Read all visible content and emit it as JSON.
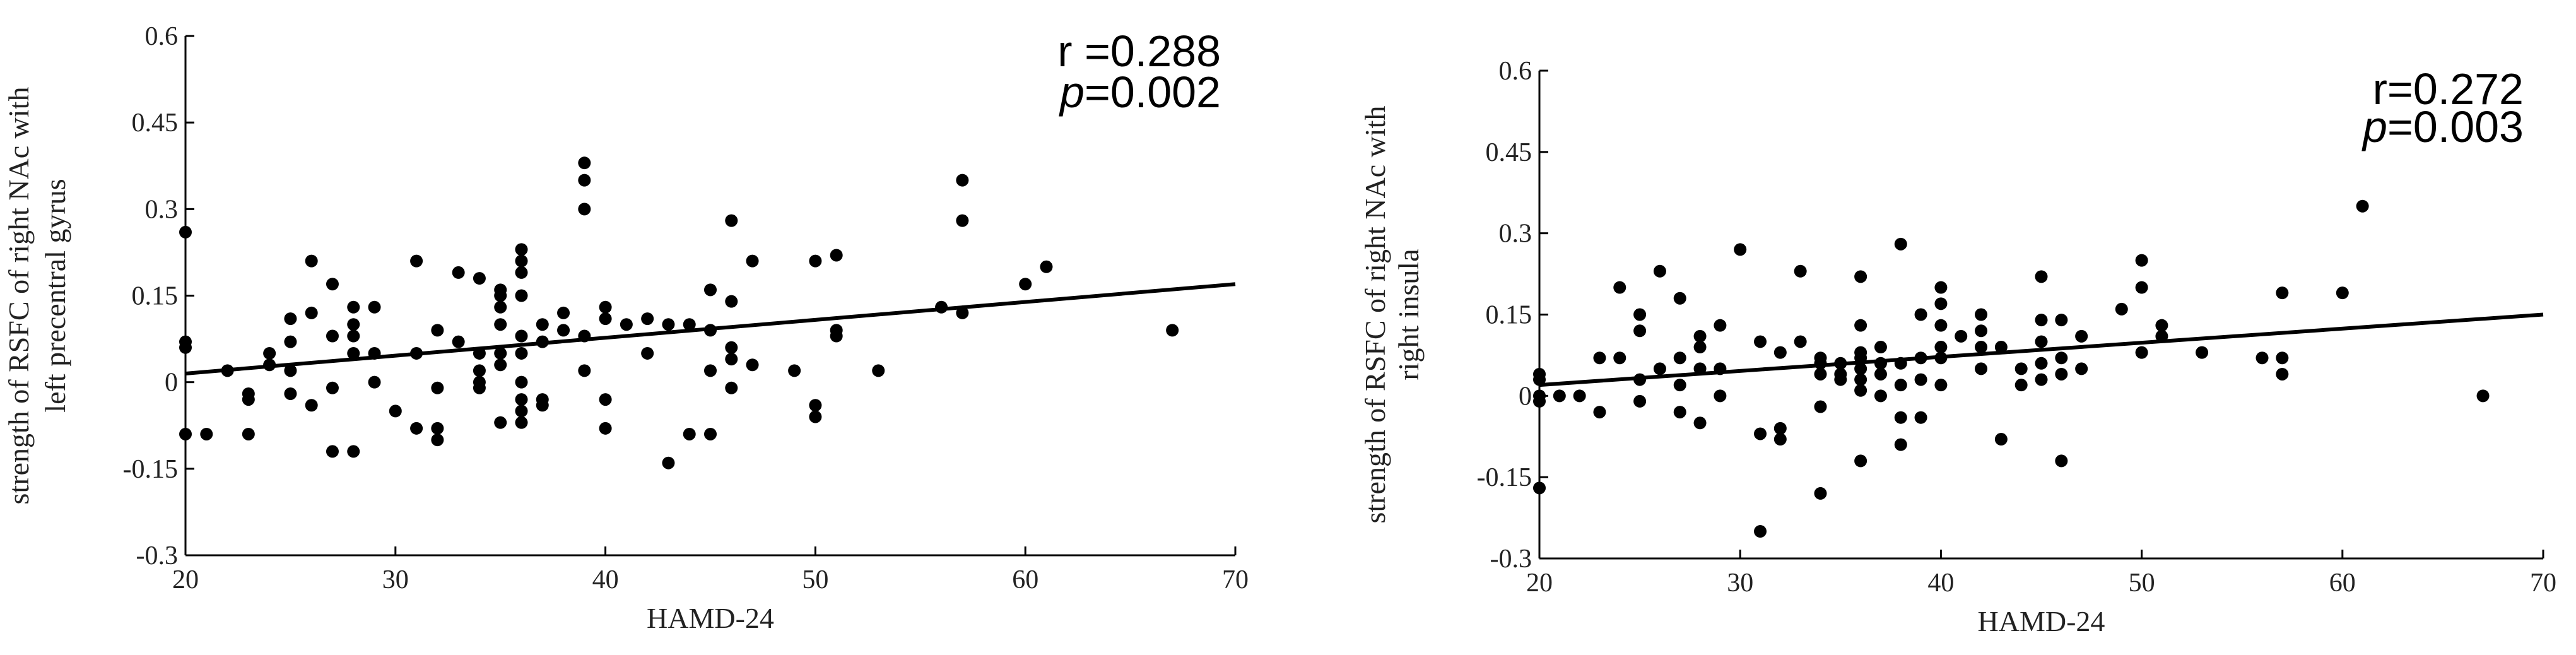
{
  "chart_data": [
    {
      "type": "scatter",
      "x_label": "HAMD-24",
      "y_label": [
        "strength of RSFC of right NAc with",
        "left precentral gyrus"
      ],
      "annotations": {
        "r": "r =0.288",
        "p_symbol": "p",
        "p_value": "=0.002"
      },
      "xlim": [
        20,
        70
      ],
      "xticks": [
        20,
        30,
        40,
        50,
        60,
        70
      ],
      "ylim": [
        -0.3,
        0.6
      ],
      "yticks": [
        -0.3,
        -0.15,
        0,
        0.15,
        0.3,
        0.45,
        0.6
      ],
      "color": "#000000",
      "x": [
        20,
        20,
        20,
        20,
        21,
        22,
        23,
        23,
        23,
        24,
        24,
        25,
        25,
        25,
        25,
        26,
        26,
        26,
        27,
        27,
        27,
        27,
        28,
        28,
        28,
        28,
        28,
        29,
        29,
        29,
        30,
        31,
        31,
        31,
        32,
        32,
        32,
        32,
        33,
        33,
        34,
        34,
        34,
        34,
        34,
        35,
        35,
        35,
        35,
        35,
        35,
        35,
        36,
        36,
        36,
        36,
        36,
        36,
        36,
        36,
        36,
        36,
        37,
        37,
        37,
        37,
        38,
        38,
        39,
        39,
        39,
        39,
        39,
        40,
        40,
        40,
        40,
        41,
        42,
        42,
        43,
        43,
        44,
        44,
        45,
        45,
        45,
        45,
        46,
        46,
        46,
        46,
        46,
        47,
        47,
        49,
        50,
        50,
        50,
        51,
        51,
        51,
        53,
        56,
        57,
        57,
        57,
        60,
        61,
        67
      ],
      "values": [
        0.26,
        0.07,
        0.06,
        -0.09,
        -0.09,
        0.02,
        -0.03,
        -0.02,
        -0.09,
        0.05,
        0.03,
        0.11,
        0.07,
        0.02,
        -0.02,
        0.21,
        0.12,
        -0.04,
        0.17,
        0.08,
        -0.01,
        -0.12,
        0.13,
        0.1,
        0.08,
        0.05,
        -0.12,
        0.13,
        0.05,
        0.0,
        -0.05,
        0.21,
        0.05,
        -0.08,
        0.09,
        -0.01,
        -0.08,
        -0.1,
        0.19,
        0.07,
        0.18,
        0.05,
        0.02,
        -0.01,
        0.0,
        0.16,
        0.15,
        0.13,
        0.1,
        0.05,
        0.03,
        -0.07,
        0.23,
        0.21,
        0.19,
        0.15,
        0.08,
        0.05,
        0.0,
        -0.03,
        -0.05,
        -0.07,
        0.1,
        0.07,
        -0.03,
        -0.04,
        0.12,
        0.09,
        0.38,
        0.35,
        0.3,
        0.08,
        0.02,
        0.13,
        0.11,
        -0.03,
        -0.08,
        0.1,
        0.11,
        0.05,
        0.1,
        -0.14,
        0.1,
        -0.09,
        0.16,
        0.09,
        0.02,
        -0.09,
        0.28,
        0.14,
        0.06,
        0.04,
        -0.01,
        0.21,
        0.03,
        0.02,
        0.21,
        -0.04,
        -0.06,
        0.22,
        0.09,
        0.08,
        0.02,
        0.13,
        0.35,
        0.28,
        0.12,
        0.17,
        0.2,
        0.09
      ],
      "fit_line": {
        "x": [
          20,
          70
        ],
        "values": [
          0.015,
          0.17
        ]
      }
    },
    {
      "type": "scatter",
      "x_label": "HAMD-24",
      "y_label": [
        "strength of RSFC of right NAc with",
        "right insula"
      ],
      "annotations": {
        "r": "r=0.272",
        "p_symbol": "p",
        "p_value": "=0.003"
      },
      "xlim": [
        20,
        70
      ],
      "xticks": [
        20,
        30,
        40,
        50,
        60,
        70
      ],
      "ylim": [
        -0.3,
        0.6
      ],
      "yticks": [
        -0.3,
        -0.15,
        0,
        0.15,
        0.3,
        0.45,
        0.6
      ],
      "color": "#000000",
      "x": [
        20,
        20,
        20,
        20,
        20,
        21,
        22,
        23,
        23,
        24,
        24,
        25,
        25,
        25,
        25,
        26,
        26,
        27,
        27,
        27,
        27,
        28,
        28,
        28,
        28,
        29,
        29,
        29,
        30,
        31,
        31,
        31,
        32,
        32,
        32,
        33,
        33,
        34,
        34,
        34,
        34,
        34,
        35,
        35,
        35,
        36,
        36,
        36,
        36,
        36,
        36,
        36,
        36,
        37,
        37,
        37,
        37,
        38,
        38,
        38,
        38,
        38,
        39,
        39,
        39,
        39,
        40,
        40,
        40,
        40,
        40,
        40,
        41,
        42,
        42,
        42,
        42,
        43,
        43,
        44,
        44,
        45,
        45,
        45,
        45,
        45,
        46,
        46,
        46,
        46,
        47,
        47,
        49,
        50,
        50,
        50,
        51,
        51,
        53,
        56,
        57,
        57,
        57,
        60,
        61,
        67
      ],
      "values": [
        0.04,
        0.03,
        0.0,
        -0.01,
        -0.17,
        0.0,
        0.0,
        0.07,
        -0.03,
        0.2,
        0.07,
        0.15,
        0.12,
        0.03,
        -0.01,
        0.23,
        0.05,
        0.18,
        0.07,
        0.02,
        -0.03,
        0.11,
        0.09,
        0.05,
        -0.05,
        0.13,
        0.05,
        0.0,
        0.27,
        0.1,
        -0.07,
        -0.25,
        0.08,
        -0.06,
        -0.08,
        0.23,
        0.1,
        0.07,
        0.06,
        0.04,
        -0.02,
        -0.18,
        0.06,
        0.04,
        0.03,
        0.22,
        0.13,
        0.08,
        0.07,
        0.05,
        0.03,
        0.01,
        -0.12,
        0.09,
        0.06,
        0.04,
        0.0,
        0.28,
        0.06,
        0.02,
        -0.04,
        -0.09,
        0.15,
        0.07,
        0.03,
        -0.04,
        0.2,
        0.17,
        0.13,
        0.09,
        0.07,
        0.02,
        0.11,
        0.15,
        0.12,
        0.09,
        0.05,
        0.09,
        -0.08,
        0.05,
        0.02,
        0.22,
        0.14,
        0.1,
        0.06,
        0.03,
        0.14,
        0.07,
        0.04,
        -0.12,
        0.11,
        0.05,
        0.16,
        0.25,
        0.2,
        0.08,
        0.13,
        0.11,
        0.08,
        0.07,
        0.19,
        0.07,
        0.04,
        0.19,
        0.35,
        0.0
      ],
      "fit_line": {
        "x": [
          20,
          70
        ],
        "values": [
          0.02,
          0.15
        ]
      }
    }
  ]
}
